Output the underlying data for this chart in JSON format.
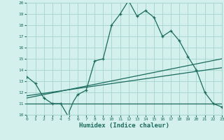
{
  "title": "",
  "xlabel": "Humidex (Indice chaleur)",
  "bg_color": "#d4f0ec",
  "grid_color": "#aad8d0",
  "line_color": "#1a6b5e",
  "xmin": 0,
  "xmax": 23,
  "ymin": 10,
  "ymax": 20,
  "yticks": [
    10,
    11,
    12,
    13,
    14,
    15,
    16,
    17,
    18,
    19,
    20
  ],
  "xticks": [
    0,
    1,
    2,
    3,
    4,
    5,
    6,
    7,
    8,
    9,
    10,
    11,
    12,
    13,
    14,
    15,
    16,
    17,
    18,
    19,
    20,
    21,
    22,
    23
  ],
  "curve1_x": [
    0,
    1,
    2,
    3,
    4,
    5,
    5,
    5.5,
    6,
    6.5,
    7,
    8,
    9,
    10,
    11,
    12,
    13,
    14,
    15,
    16,
    17,
    18,
    19,
    20,
    21,
    22,
    23
  ],
  "curve1_y": [
    13.4,
    12.8,
    11.5,
    11.0,
    11.0,
    9.7,
    10.3,
    11.2,
    11.8,
    12.0,
    12.2,
    14.8,
    15.0,
    18.0,
    19.0,
    20.2,
    18.8,
    19.3,
    18.7,
    17.0,
    17.5,
    16.6,
    15.2,
    14.0,
    12.0,
    11.0,
    10.7
  ],
  "curve2_x": [
    0,
    23
  ],
  "curve2_y": [
    11.0,
    11.0
  ],
  "curve3_x": [
    0,
    23
  ],
  "curve3_y": [
    11.5,
    15.0
  ],
  "curve4_x": [
    0,
    23
  ],
  "curve4_y": [
    11.7,
    14.2
  ],
  "marker_x": [
    0,
    1,
    2,
    3,
    4,
    5,
    6,
    7,
    8,
    9,
    10,
    11,
    12,
    13,
    14,
    15,
    16,
    17,
    18,
    19,
    20,
    21,
    22,
    23
  ],
  "marker_y": [
    13.4,
    12.8,
    11.5,
    11.0,
    11.0,
    9.7,
    11.8,
    12.2,
    14.8,
    15.0,
    18.0,
    19.0,
    20.2,
    18.8,
    19.3,
    18.7,
    17.0,
    17.5,
    16.6,
    15.2,
    14.0,
    12.0,
    11.0,
    10.7
  ]
}
